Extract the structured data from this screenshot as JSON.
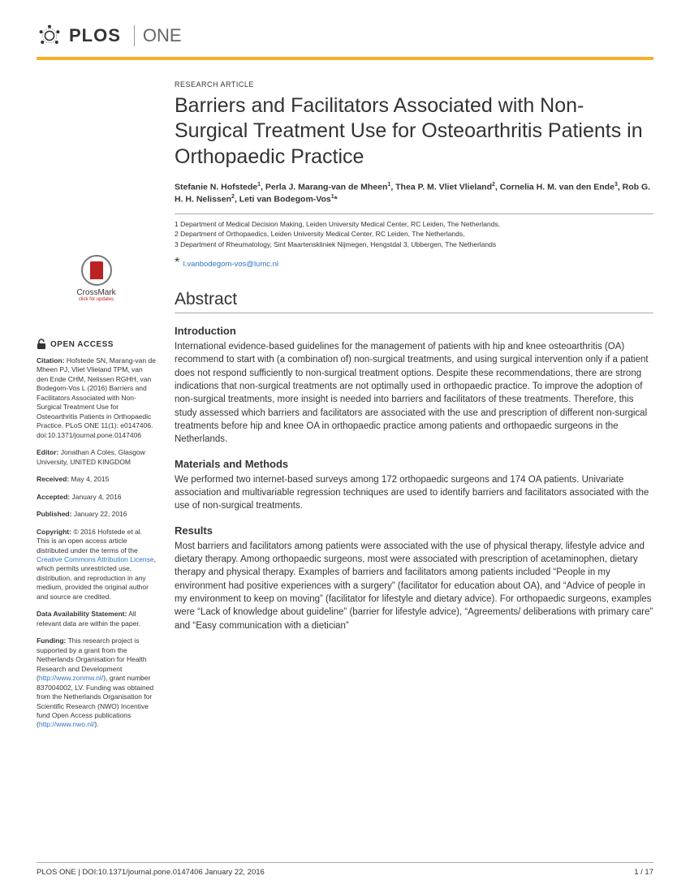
{
  "journal": {
    "name": "PLOS",
    "sub": "ONE"
  },
  "article_type": "RESEARCH ARTICLE",
  "title": "Barriers and Facilitators Associated with Non-Surgical Treatment Use for Osteoarthritis Patients in Orthopaedic Practice",
  "authors_html": "Stefanie N. Hofstede<sup>1</sup>, Perla J. Marang-van de Mheen<sup>1</sup>, Thea P. M. Vliet Vlieland<sup>2</sup>, Cornelia H. M. van den Ende<sup>3</sup>, Rob G. H. H. Nelissen<sup>2</sup>, Leti van Bodegom-Vos<sup>1</sup>*",
  "affiliations": [
    "1 Department of Medical Decision Making, Leiden University Medical Center, RC Leiden, The Netherlands,",
    "2 Department of Orthopaedics, Leiden University Medical Center, RC Leiden, The Netherlands,",
    "3 Department of Rheumatology, Sint Maartenskliniek Nijmegen, Hengstdal 3, Ubbergen, The Netherlands"
  ],
  "corr_prefix": "* ",
  "corr_email": "l.vanbodegom-vos@lumc.nl",
  "crossmark": {
    "label": "CrossMark",
    "sub": "click for updates"
  },
  "open_access_label": "OPEN ACCESS",
  "sidebar": {
    "citation": "Hofstede SN, Marang-van de Mheen PJ, Vliet Vlieland TPM, van den Ende CHM, Nelissen RGHH, van Bodegom-Vos L (2016) Barriers and Facilitators Associated with Non-Surgical Treatment Use for Osteoarthritis Patients in Orthopaedic Practice. PLoS ONE 11(1): e0147406. doi:10.1371/journal.pone.0147406",
    "editor": "Jonathan A Coles, Glasgow University, UNITED KINGDOM",
    "received": "May 4, 2015",
    "accepted": "January 4, 2016",
    "published": "January 22, 2016",
    "copyright_pre": "© 2016 Hofstede et al. This is an open access article distributed under the terms of the ",
    "copyright_link": "Creative Commons Attribution License",
    "copyright_post": ", which permits unrestricted use, distribution, and reproduction in any medium, provided the original author and source are credited.",
    "data_avail": "All relevant data are within the paper.",
    "funding_pre": "This research project is supported by a grant from the Netherlands Organisation for Health Research and Development (",
    "funding_link1": "http://www.zonmw.nl/",
    "funding_mid": "), grant number 837004002, LV. Funding was obtained from the Netherlands Organisation for Scientific Research (NWO) Incentive fund Open Access publications (",
    "funding_link2": "http://www.nwo.nl/",
    "funding_post": ")."
  },
  "labels": {
    "citation": "Citation:",
    "editor": "Editor:",
    "received": "Received:",
    "accepted": "Accepted:",
    "published": "Published:",
    "copyright": "Copyright:",
    "data_avail": "Data Availability Statement:",
    "funding": "Funding:"
  },
  "abstract_heading": "Abstract",
  "sections": {
    "intro_h": "Introduction",
    "intro_b": "International evidence-based guidelines for the management of patients with hip and knee osteoarthritis (OA) recommend to start with (a combination of) non-surgical treatments, and using surgical intervention only if a patient does not respond sufficiently to non-surgical treatment options. Despite these recommendations, there are strong indications that non-surgical treatments are not optimally used in orthopaedic practice. To improve the adoption of non-surgical treatments, more insight is needed into barriers and facilitators of these treatments. Therefore, this study assessed which barriers and facilitators are associated with the use and prescription of different non-surgical treatments before hip and knee OA in orthopaedic practice among patients and orthopaedic surgeons in the Netherlands.",
    "methods_h": "Materials and Methods",
    "methods_b": "We performed two internet-based surveys among 172 orthopaedic surgeons and 174 OA patients. Univariate association and multivariable regression techniques are used to identify barriers and facilitators associated with the use of non-surgical treatments.",
    "results_h": "Results",
    "results_b": "Most barriers and facilitators among patients were associated with the use of physical therapy, lifestyle advice and dietary therapy. Among orthopaedic surgeons, most were associated with prescription of acetaminophen, dietary therapy and physical therapy. Examples of barriers and facilitators among patients included “People in my environment had positive experiences with a surgery” (facilitator for education about OA), and “Advice of people in my environment to keep on moving” (facilitator for lifestyle and dietary advice). For orthopaedic surgeons, examples were “Lack of knowledge about guideline” (barrier for lifestyle advice), “Agreements/ deliberations with primary care” and “Easy communication with a dietician”"
  },
  "footer": {
    "left": "PLOS ONE | DOI:10.1371/journal.pone.0147406   January 22, 2016",
    "right": "1 / 17"
  },
  "colors": {
    "accent": "#f8af2d",
    "link": "#3273c3"
  }
}
